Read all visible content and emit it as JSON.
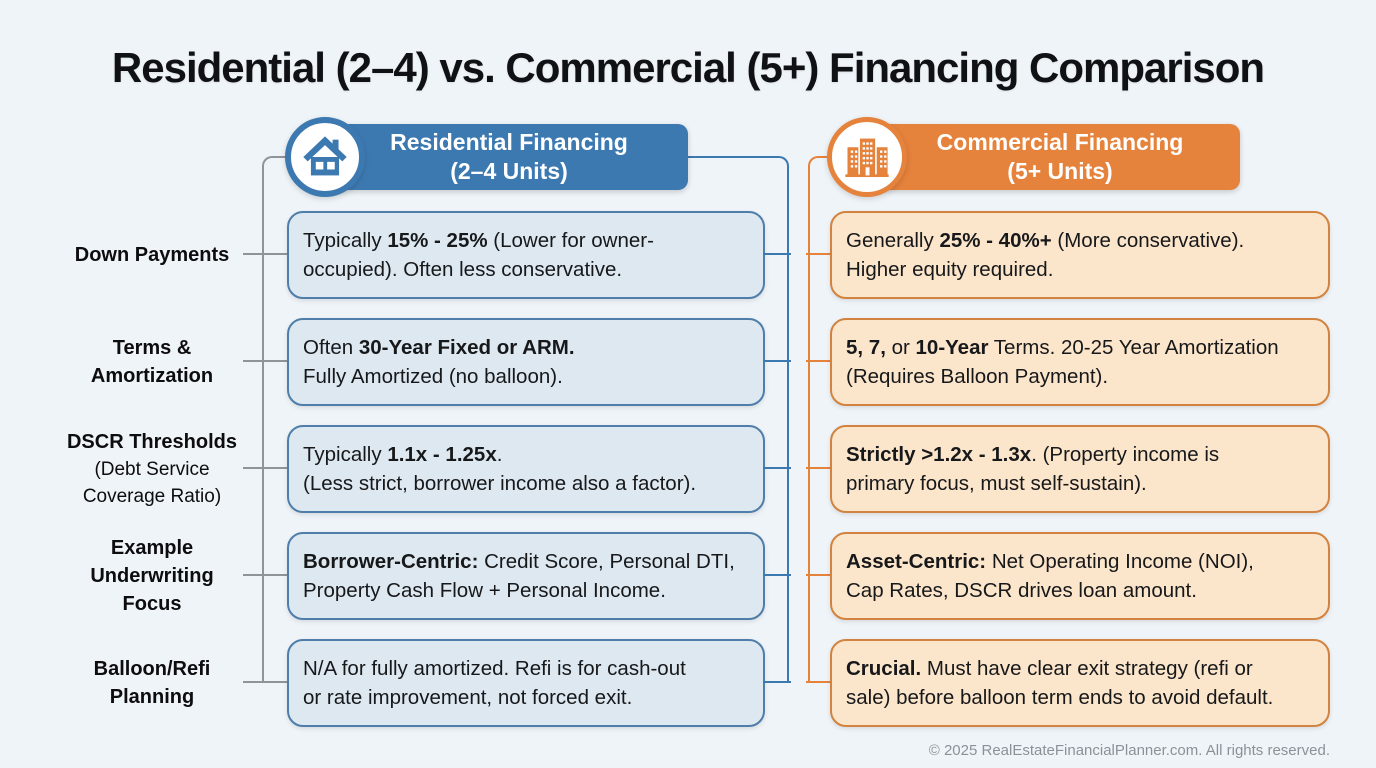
{
  "title": "Residential (2–4) vs. Commercial (5+) Financing Comparison",
  "colors": {
    "background": "#eff4f8",
    "residential_accent": "#3d79b1",
    "residential_box_bg": "#dde8f1",
    "residential_box_border": "#4e7ea9",
    "commercial_accent": "#e5823c",
    "commercial_box_bg": "#fbe5cb",
    "commercial_box_border": "#d1833f",
    "connector_gray": "#8f9499"
  },
  "header": {
    "residential": {
      "icon": "house-icon",
      "line1": "Residential Financing",
      "line2": "(2–4 Units)"
    },
    "commercial": {
      "icon": "buildings-icon",
      "line1": "Commercial Financing",
      "line2": "(5+ Units)"
    }
  },
  "rows": [
    {
      "label_lines": [
        {
          "text": "Down Payments",
          "bold": true
        }
      ],
      "residential": [
        {
          "text": "Typically ",
          "bold": false
        },
        {
          "text": "15% - 25%",
          "bold": true
        },
        {
          "text": " (Lower for owner-\noccupied). Often less conservative.",
          "bold": false
        }
      ],
      "commercial": [
        {
          "text": "Generally ",
          "bold": false
        },
        {
          "text": "25% - 40%+",
          "bold": true
        },
        {
          "text": " (More conservative).\nHigher equity required.",
          "bold": false
        }
      ]
    },
    {
      "label_lines": [
        {
          "text": "Terms &",
          "bold": true
        },
        {
          "text": "Amortization",
          "bold": true
        }
      ],
      "residential": [
        {
          "text": "Often ",
          "bold": false
        },
        {
          "text": "30-Year Fixed or ARM.",
          "bold": true
        },
        {
          "text": "\nFully Amortized (no balloon).",
          "bold": false
        }
      ],
      "commercial": [
        {
          "text": "5, 7,",
          "bold": true
        },
        {
          "text": " or ",
          "bold": false
        },
        {
          "text": "10-Year",
          "bold": true
        },
        {
          "text": " Terms. 20-25 Year Amortization\n(Requires Balloon Payment).",
          "bold": false
        }
      ]
    },
    {
      "label_lines": [
        {
          "text": "DSCR Thresholds",
          "bold": true
        },
        {
          "text": "(Debt Service",
          "bold": false
        },
        {
          "text": "Coverage Ratio)",
          "bold": false
        }
      ],
      "residential": [
        {
          "text": "Typically ",
          "bold": false
        },
        {
          "text": "1.1x - 1.25x",
          "bold": true
        },
        {
          "text": ".\n(Less strict, borrower income also a factor).",
          "bold": false
        }
      ],
      "commercial": [
        {
          "text": "Strictly >1.2x - 1.3x",
          "bold": true
        },
        {
          "text": ". (Property income is\nprimary focus, must self-sustain).",
          "bold": false
        }
      ]
    },
    {
      "label_lines": [
        {
          "text": "Example",
          "bold": true
        },
        {
          "text": "Underwriting",
          "bold": true
        },
        {
          "text": "Focus",
          "bold": true
        }
      ],
      "residential": [
        {
          "text": "Borrower-Centric:",
          "bold": true
        },
        {
          "text": " Credit Score, Personal DTI,\nProperty Cash Flow + Personal Income.",
          "bold": false
        }
      ],
      "commercial": [
        {
          "text": "Asset-Centric:",
          "bold": true
        },
        {
          "text": " Net Operating Income (NOI),\nCap Rates, DSCR drives loan amount.",
          "bold": false
        }
      ]
    },
    {
      "label_lines": [
        {
          "text": "Balloon/Refi",
          "bold": true
        },
        {
          "text": "Planning",
          "bold": true
        }
      ],
      "residential": [
        {
          "text": "N/A for fully amortized. Refi is for cash-out\nor rate improvement, not forced exit.",
          "bold": false
        }
      ],
      "commercial": [
        {
          "text": "Crucial.",
          "bold": true
        },
        {
          "text": " Must have clear exit strategy (refi or\nsale) before balloon term ends to avoid default.",
          "bold": false
        }
      ]
    }
  ],
  "footer": "© 2025 RealEstateFinancialPlanner.com. All rights reserved."
}
